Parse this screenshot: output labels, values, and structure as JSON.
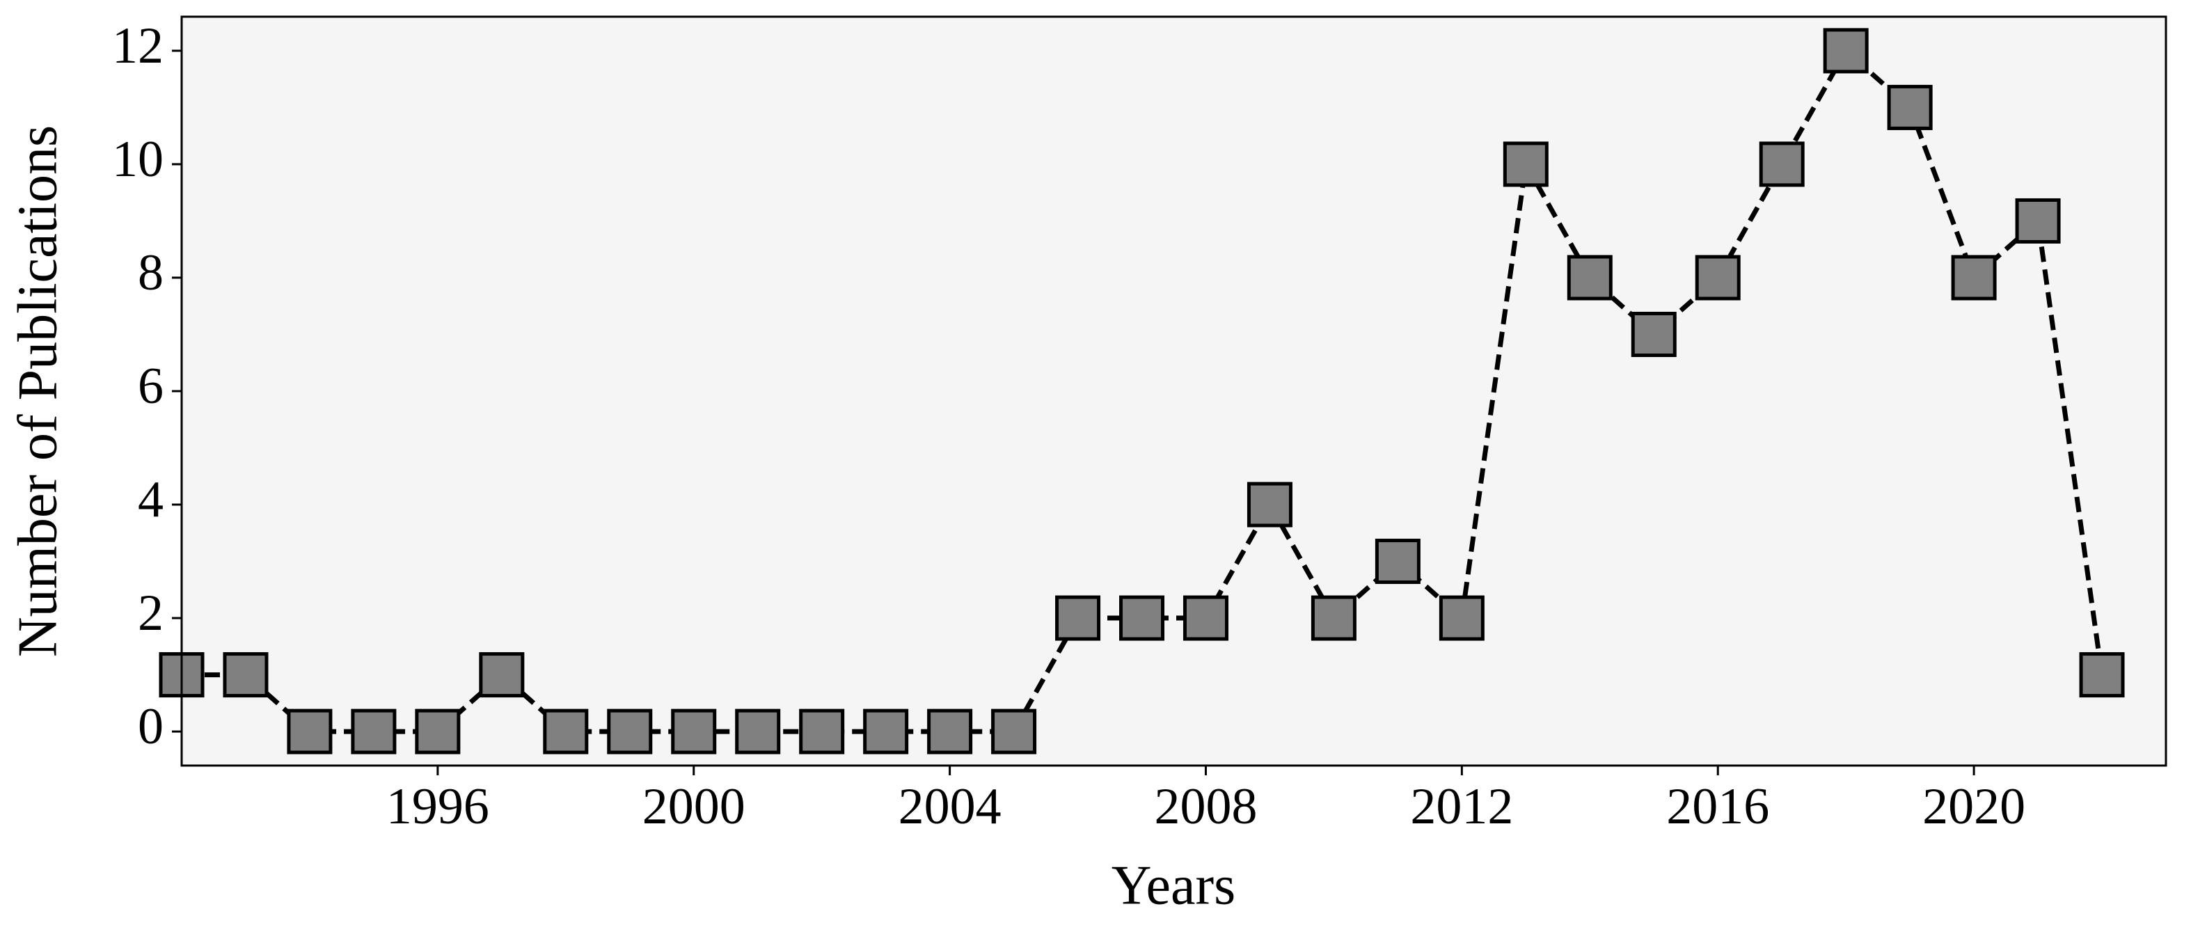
{
  "chart_data": {
    "type": "line",
    "x_label": "Years",
    "y_label": "Number of Publications",
    "x": [
      1992,
      1993,
      1994,
      1995,
      1996,
      1997,
      1998,
      1999,
      2000,
      2001,
      2002,
      2003,
      2004,
      2005,
      2006,
      2007,
      2008,
      2009,
      2010,
      2011,
      2012,
      2013,
      2014,
      2015,
      2016,
      2017,
      2018,
      2019,
      2020,
      2021,
      2022
    ],
    "series": [
      {
        "name": "Publications",
        "color": "#808080",
        "values": [
          1,
          1,
          0,
          0,
          0,
          1,
          0,
          0,
          0,
          0,
          0,
          0,
          0,
          0,
          2,
          2,
          2,
          4,
          2,
          3,
          2,
          10,
          8,
          7,
          8,
          10,
          12,
          11,
          8,
          9,
          1
        ]
      }
    ],
    "xlim": [
      1992,
      2023
    ],
    "xticks": [
      1996,
      2000,
      2004,
      2008,
      2012,
      2016,
      2020
    ],
    "ylim": [
      -0.6,
      12.6
    ],
    "yticks": [
      0,
      2,
      4,
      6,
      8,
      10,
      12
    ],
    "grid": false
  }
}
